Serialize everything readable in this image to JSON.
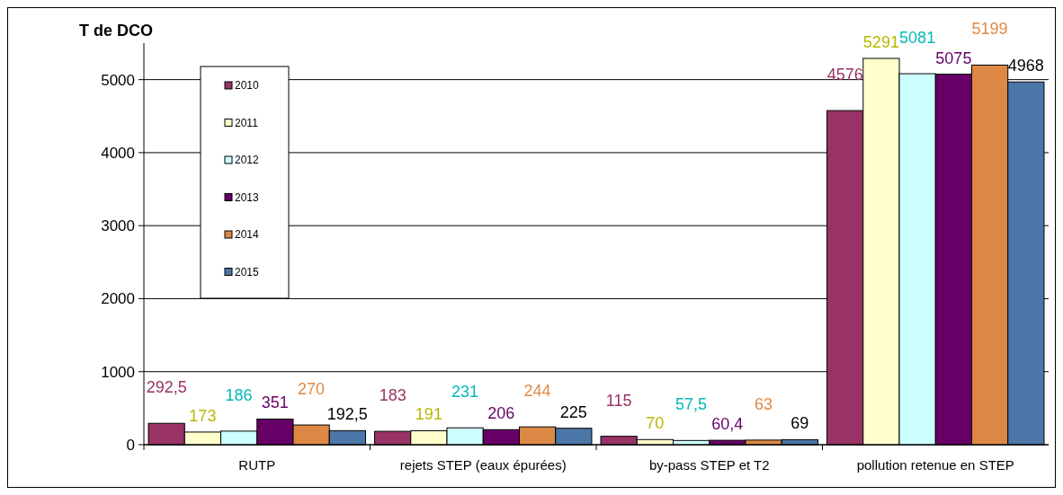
{
  "chart_data": {
    "type": "bar",
    "ylabel": "T de DCO",
    "categories": [
      "RUTP",
      "rejets STEP (eaux épurées)",
      "by-pass STEP et T2",
      "pollution retenue en STEP"
    ],
    "series": [
      {
        "name": "2010",
        "color": "#993366",
        "values": [
          292.5,
          183,
          115,
          4576
        ],
        "value_labels": [
          "292,5",
          "183",
          "115",
          "4576"
        ]
      },
      {
        "name": "2011",
        "color": "#ffffcc",
        "values": [
          173,
          191,
          70,
          5291
        ],
        "value_labels": [
          "173",
          "191",
          "70",
          "5291"
        ]
      },
      {
        "name": "2012",
        "color": "#ccffff",
        "values": [
          186,
          231,
          57.5,
          5081
        ],
        "value_labels": [
          "186",
          "231",
          "57,5",
          "5081"
        ]
      },
      {
        "name": "2013",
        "color": "#660066",
        "values": [
          351,
          206,
          60.4,
          5075
        ],
        "value_labels": [
          "351",
          "206",
          "60,4",
          "5075"
        ]
      },
      {
        "name": "2014",
        "color": "#dd8844",
        "values": [
          270,
          244,
          63,
          5199
        ],
        "value_labels": [
          "270",
          "244",
          "63",
          "5199"
        ]
      },
      {
        "name": "2015",
        "color": "#4a76a8",
        "values": [
          192.5,
          225,
          69,
          4968
        ],
        "value_labels": [
          "192,5",
          "225",
          "69",
          "4968"
        ]
      }
    ],
    "ylim": [
      0,
      5500
    ],
    "yticks": [
      0,
      1000,
      2000,
      3000,
      4000,
      5000
    ],
    "grid": "y",
    "legend": "top left"
  }
}
